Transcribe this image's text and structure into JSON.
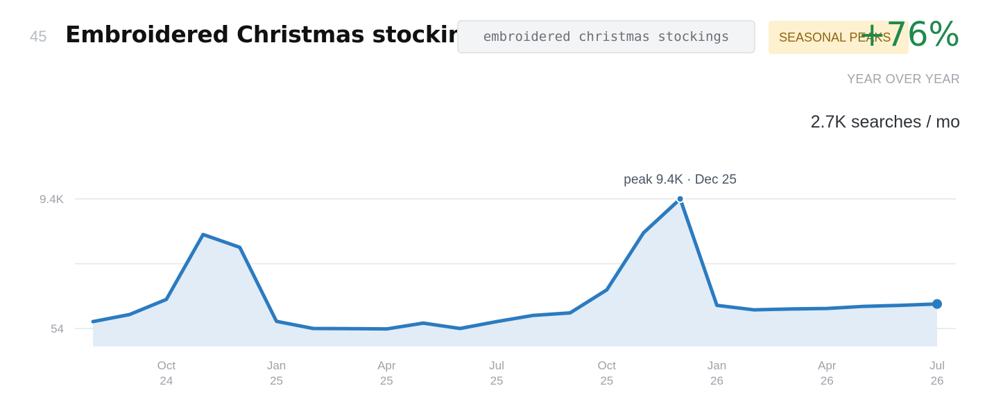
{
  "rank": "45",
  "title": "Embroidered Christmas stockings",
  "keyword": "embroidered christmas stockings",
  "badge": "SEASONAL PEAKS",
  "growth": "+76%",
  "growth_caption": "YEAR OVER YEAR",
  "volume": "2.7K searches / mo",
  "colors": {
    "line": "#2b7bc0",
    "fill": "#e1ecf7",
    "growth": "#1f8a4c",
    "badge_bg": "#fdf1cf"
  },
  "chart_data": {
    "type": "area",
    "title": "",
    "xlabel": "",
    "ylabel": "",
    "x": [
      "Aug 24",
      "Sep 24",
      "Oct 24",
      "Nov 24",
      "Dec 24",
      "Jan 25",
      "Feb 25",
      "Mar 25",
      "Apr 25",
      "May 25",
      "Jun 25",
      "Jul 25",
      "Aug 25",
      "Sep 25",
      "Oct 25",
      "Nov 25",
      "Dec 25",
      "Jan 26",
      "Feb 26",
      "Mar 26",
      "Apr 26",
      "May 26",
      "Jun 26",
      "Jul 26"
    ],
    "values": [
      550,
      1060,
      2150,
      6830,
      5910,
      570,
      54,
      40,
      20,
      440,
      54,
      550,
      1000,
      1180,
      2840,
      6950,
      9400,
      1720,
      1400,
      1460,
      1500,
      1650,
      1720,
      1820
    ],
    "yticks": [
      {
        "value": 54,
        "label": "54"
      },
      {
        "value": 4727,
        "label": ""
      },
      {
        "value": 9400,
        "label": "9.4K"
      }
    ],
    "xticks": [
      {
        "at": "Oct 24",
        "month": "Oct",
        "year": "24"
      },
      {
        "at": "Jan 25",
        "month": "Jan",
        "year": "25"
      },
      {
        "at": "Apr 25",
        "month": "Apr",
        "year": "25"
      },
      {
        "at": "Jul 25",
        "month": "Jul",
        "year": "25"
      },
      {
        "at": "Oct 25",
        "month": "Oct",
        "year": "25"
      },
      {
        "at": "Jan 26",
        "month": "Jan",
        "year": "26"
      },
      {
        "at": "Apr 26",
        "month": "Apr",
        "year": "26"
      },
      {
        "at": "Jul 26",
        "month": "Jul",
        "year": "26"
      }
    ],
    "peak": {
      "at": "Dec 25",
      "label": "peak 9.4K · Dec 25"
    },
    "current_marker": "Jul 26",
    "grid": true,
    "legend": "none"
  }
}
